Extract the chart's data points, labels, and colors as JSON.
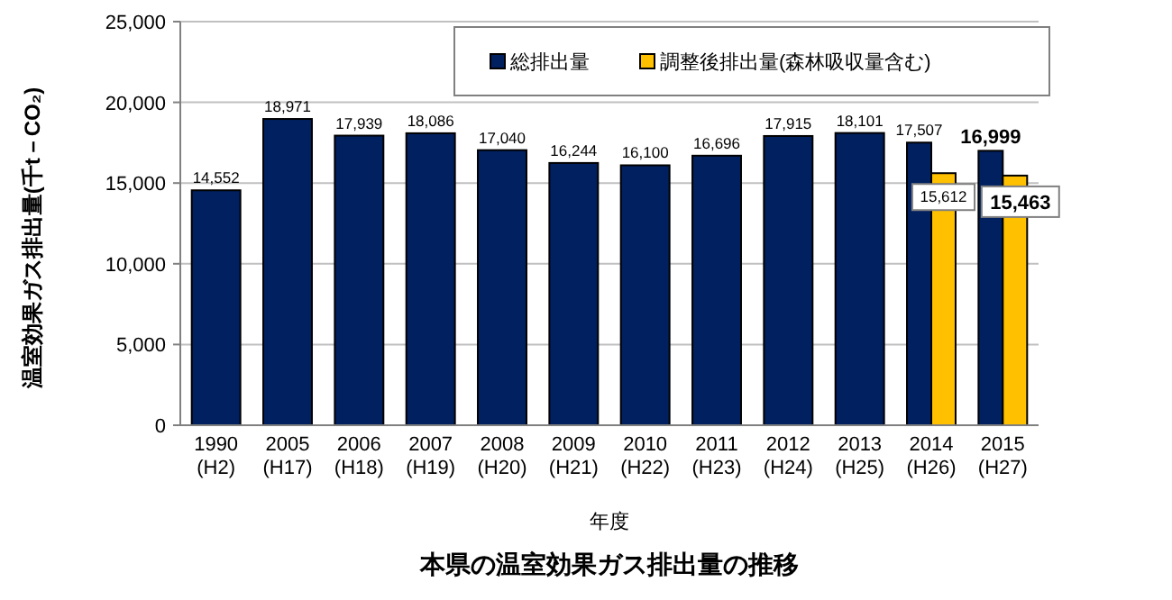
{
  "chart_data": {
    "type": "bar",
    "title": "本県の温室効果ガス排出量の推移",
    "xlabel": "年度",
    "ylabel": "温室効果ガス排出量(千t－CO₂)",
    "categories": [
      "1990\n(H2)",
      "2005\n(H17)",
      "2006\n(H18)",
      "2007\n(H19)",
      "2008\n(H20)",
      "2009\n(H21)",
      "2010\n(H22)",
      "2011\n(H23)",
      "2012\n(H24)",
      "2013\n(H25)",
      "2014\n(H26)",
      "2015\n(H27)"
    ],
    "series": [
      {
        "name": "総排出量",
        "color": "#002060",
        "values": [
          14552,
          18971,
          17939,
          18086,
          17040,
          16244,
          16100,
          16696,
          17915,
          18101,
          17507,
          16999
        ],
        "value_labels": [
          "14,552",
          "18,971",
          "17,939",
          "18,086",
          "17,040",
          "16,244",
          "16,100",
          "16,696",
          "17,915",
          "18,101",
          "17,507",
          "16,999"
        ]
      },
      {
        "name": "調整後排出量(森林吸収量含む)",
        "color": "#ffc000",
        "values": [
          null,
          null,
          null,
          null,
          null,
          null,
          null,
          null,
          null,
          null,
          15612,
          15463
        ],
        "value_labels": [
          null,
          null,
          null,
          null,
          null,
          null,
          null,
          null,
          null,
          null,
          "15,612",
          "15,463"
        ]
      }
    ],
    "ylim": [
      0,
      25000
    ],
    "yticks": [
      {
        "value": 0,
        "label": "0"
      },
      {
        "value": 5000,
        "label": "5,000"
      },
      {
        "value": 10000,
        "label": "10,000"
      },
      {
        "value": 15000,
        "label": "15,000"
      },
      {
        "value": 20000,
        "label": "20,000"
      },
      {
        "value": 25000,
        "label": "25,000"
      }
    ],
    "grid": "y",
    "legend": "top"
  }
}
